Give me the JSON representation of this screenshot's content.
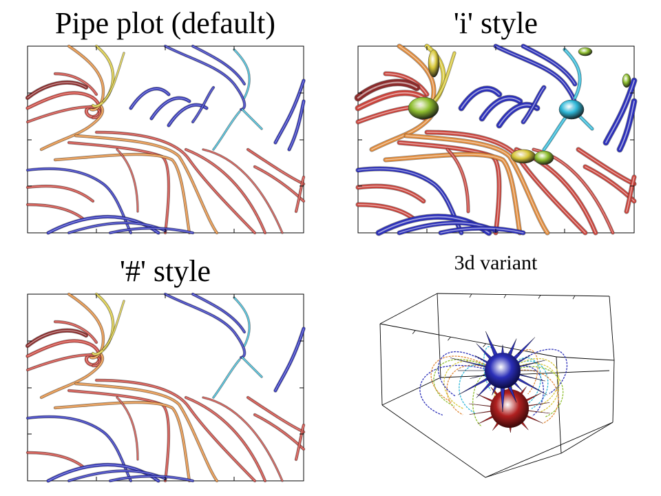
{
  "panels": [
    {
      "id": "default",
      "title": "Pipe plot (default)"
    },
    {
      "id": "i_style",
      "title": "'i' style"
    },
    {
      "id": "hash_style",
      "title": "'#' style"
    },
    {
      "id": "3d_variant",
      "title": "3d variant"
    }
  ],
  "colors": {
    "blue": "#2b2fb8",
    "cyan": "#2fb8d8",
    "red": "#c9423a",
    "orange": "#e08a3a",
    "yellow": "#d8c83a",
    "green": "#8fbf2f",
    "darkred": "#8a2a2a",
    "frame": "#000000"
  }
}
